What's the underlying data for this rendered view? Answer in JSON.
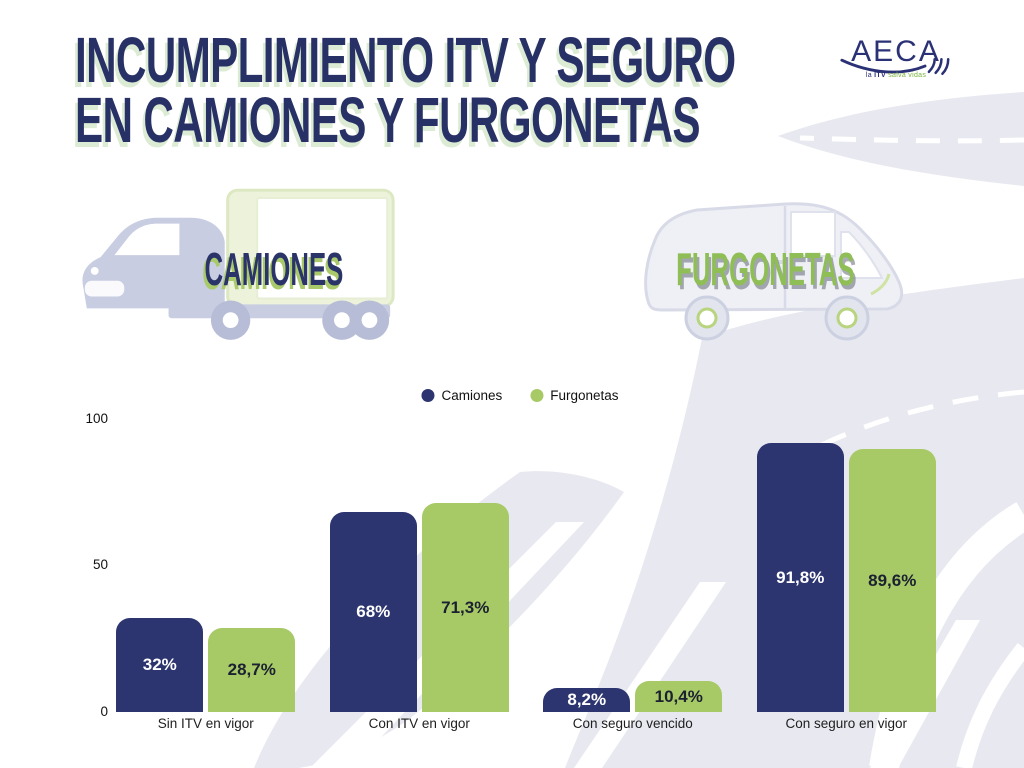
{
  "title": {
    "line1": "INCUMPLIMIENTO ITV Y SEGURO",
    "line2": "EN CAMIONES Y FURGONETAS"
  },
  "logo": {
    "name": "AECA",
    "tagline": {
      "prefix": "la",
      "bold": "ITV",
      "suffix": "salva vidas"
    }
  },
  "vehicles": {
    "camiones_label": "CAMIONES",
    "furgonetas_label": "FURGONETAS"
  },
  "colors": {
    "navy": "#2d3571",
    "green": "#a7ca67",
    "title_navy": "#283166",
    "heading_green": "#8fbe56",
    "road_gray": "#e8e9f0"
  },
  "chart_data": {
    "type": "bar",
    "title": "",
    "xlabel": "",
    "ylabel": "",
    "categories": [
      "Sin ITV en vigor",
      "Con ITV en vigor",
      "Con seguro vencido",
      "Con seguro en vigor"
    ],
    "series": [
      {
        "name": "Camiones",
        "color": "#2d3571",
        "label_color": "#ffffff",
        "values": [
          32,
          68,
          8.2,
          91.8
        ],
        "value_labels": [
          "32%",
          "68%",
          "8,2%",
          "91,8%"
        ]
      },
      {
        "name": "Furgonetas",
        "color": "#a7ca67",
        "label_color": "#1b2130",
        "values": [
          28.7,
          71.3,
          10.4,
          89.6
        ],
        "value_labels": [
          "28,7%",
          "71,3%",
          "10,4%",
          "89,6%"
        ]
      }
    ],
    "ylim": [
      0,
      100
    ],
    "yticks": [
      0,
      50,
      100
    ],
    "grid": false,
    "legend_position": "top-center"
  }
}
